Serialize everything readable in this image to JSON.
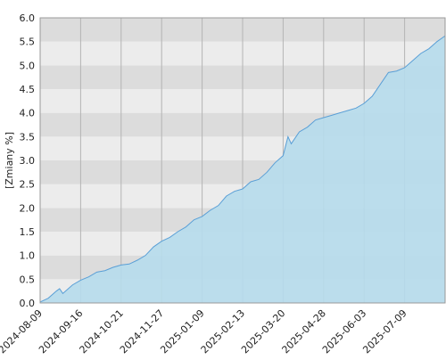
{
  "chart_data": {
    "type": "area",
    "y_label": "[Zmiany %]",
    "x": [
      0,
      5,
      10,
      12,
      14,
      20,
      25,
      30,
      35,
      40,
      45,
      50,
      55,
      60,
      65,
      70,
      75,
      80,
      85,
      90,
      95,
      100,
      105,
      110,
      115,
      120,
      125,
      130,
      135,
      140,
      145,
      150,
      153,
      155,
      160,
      165,
      170,
      175,
      180,
      185,
      190,
      195,
      200,
      205,
      210,
      215,
      220,
      225,
      230,
      235,
      240,
      245,
      250
    ],
    "values": [
      0.02,
      0.1,
      0.25,
      0.3,
      0.2,
      0.38,
      0.48,
      0.55,
      0.65,
      0.68,
      0.75,
      0.8,
      0.82,
      0.9,
      1.0,
      1.18,
      1.3,
      1.38,
      1.5,
      1.6,
      1.75,
      1.82,
      1.95,
      2.05,
      2.25,
      2.35,
      2.4,
      2.55,
      2.6,
      2.75,
      2.95,
      3.1,
      3.5,
      3.35,
      3.6,
      3.7,
      3.85,
      3.9,
      3.95,
      4.0,
      4.05,
      4.1,
      4.2,
      4.35,
      4.6,
      4.85,
      4.88,
      4.95,
      5.1,
      5.25,
      5.35,
      5.5,
      5.62
    ],
    "color": "#5a9fd6",
    "fill": "#b6dcec",
    "xlim": [
      0,
      250
    ],
    "xticks": [
      {
        "value": 0,
        "label": "2024-08-09"
      },
      {
        "value": 25,
        "label": "2024-09-16"
      },
      {
        "value": 50,
        "label": "2024-10-21"
      },
      {
        "value": 75,
        "label": "2024-11-27"
      },
      {
        "value": 100,
        "label": "2025-01-09"
      },
      {
        "value": 125,
        "label": "2025-02-13"
      },
      {
        "value": 150,
        "label": "2025-03-20"
      },
      {
        "value": 175,
        "label": "2025-04-28"
      },
      {
        "value": 200,
        "label": "2025-06-03"
      },
      {
        "value": 225,
        "label": "2025-07-09"
      }
    ],
    "ylim": [
      0,
      6
    ],
    "yticks": [
      {
        "value": 0,
        "label": "0.0"
      },
      {
        "value": 0.5,
        "label": "0.5"
      },
      {
        "value": 1,
        "label": "1.0"
      },
      {
        "value": 1.5,
        "label": "1.5"
      },
      {
        "value": 2,
        "label": "2.0"
      },
      {
        "value": 2.5,
        "label": "2.5"
      },
      {
        "value": 3,
        "label": "3.0"
      },
      {
        "value": 3.5,
        "label": "3.5"
      },
      {
        "value": 4,
        "label": "4.0"
      },
      {
        "value": 4.5,
        "label": "4.5"
      },
      {
        "value": 5,
        "label": "5.0"
      },
      {
        "value": 5.5,
        "label": "5.5"
      },
      {
        "value": 6,
        "label": "6.0"
      }
    ],
    "grid": true
  }
}
